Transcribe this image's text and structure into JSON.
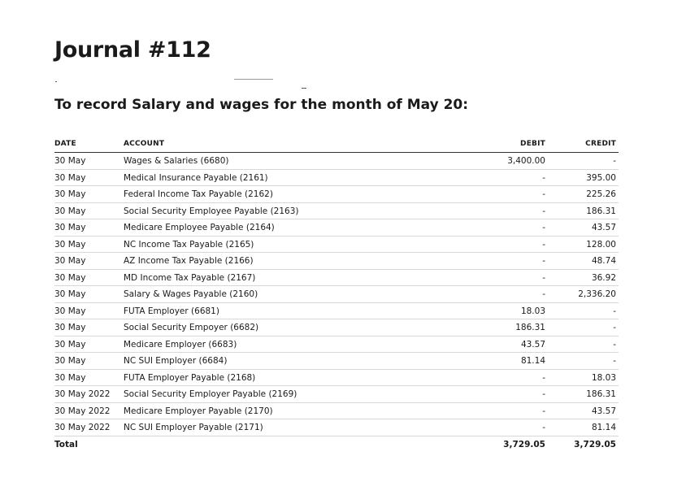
{
  "title": "Journal #112",
  "subtitle": "To record Salary and wages for the month of May 20:",
  "columns": {
    "date": "DATE",
    "account": "ACCOUNT",
    "debit": "DEBIT",
    "credit": "CREDIT"
  },
  "rows": [
    {
      "date": "30 May",
      "account": "Wages & Salaries (6680)",
      "debit": "3,400.00",
      "credit": "-"
    },
    {
      "date": "30 May",
      "account": "Medical Insurance Payable (2161)",
      "debit": "-",
      "credit": "395.00"
    },
    {
      "date": "30 May",
      "account": "Federal Income Tax Payable (2162)",
      "debit": "-",
      "credit": "225.26"
    },
    {
      "date": "30 May",
      "account": "Social Security Employee Payable (2163)",
      "debit": "-",
      "credit": "186.31"
    },
    {
      "date": "30 May",
      "account": "Medicare Employee Payable (2164)",
      "debit": "-",
      "credit": "43.57"
    },
    {
      "date": "30 May",
      "account": "NC Income Tax Payable (2165)",
      "debit": "-",
      "credit": "128.00"
    },
    {
      "date": "30 May",
      "account": "AZ Income Tax Payable (2166)",
      "debit": "-",
      "credit": "48.74"
    },
    {
      "date": "30 May",
      "account": "MD Income Tax Payable (2167)",
      "debit": "-",
      "credit": "36.92"
    },
    {
      "date": "30 May",
      "account": "Salary & Wages Payable (2160)",
      "debit": "-",
      "credit": "2,336.20"
    },
    {
      "date": "30 May",
      "account": "FUTA Employer (6681)",
      "debit": "18.03",
      "credit": "-"
    },
    {
      "date": "30 May",
      "account": "Social Security Empoyer (6682)",
      "debit": "186.31",
      "credit": "-"
    },
    {
      "date": "30 May",
      "account": "Medicare Employer (6683)",
      "debit": "43.57",
      "credit": "-"
    },
    {
      "date": "30 May",
      "account": "NC SUI Employer (6684)",
      "debit": "81.14",
      "credit": "-"
    },
    {
      "date": "30 May",
      "account": "FUTA Employer Payable (2168)",
      "debit": "-",
      "credit": "18.03"
    },
    {
      "date": "30 May 2022",
      "account": "Social Security Employer Payable (2169)",
      "debit": "-",
      "credit": "186.31"
    },
    {
      "date": "30 May 2022",
      "account": "Medicare Employer Payable (2170)",
      "debit": "-",
      "credit": "43.57"
    },
    {
      "date": "30 May 2022",
      "account": "NC SUI Employer Payable (2171)",
      "debit": "-",
      "credit": "81.14"
    }
  ],
  "total": {
    "label": "Total",
    "debit": "3,729.05",
    "credit": "3,729.05"
  }
}
